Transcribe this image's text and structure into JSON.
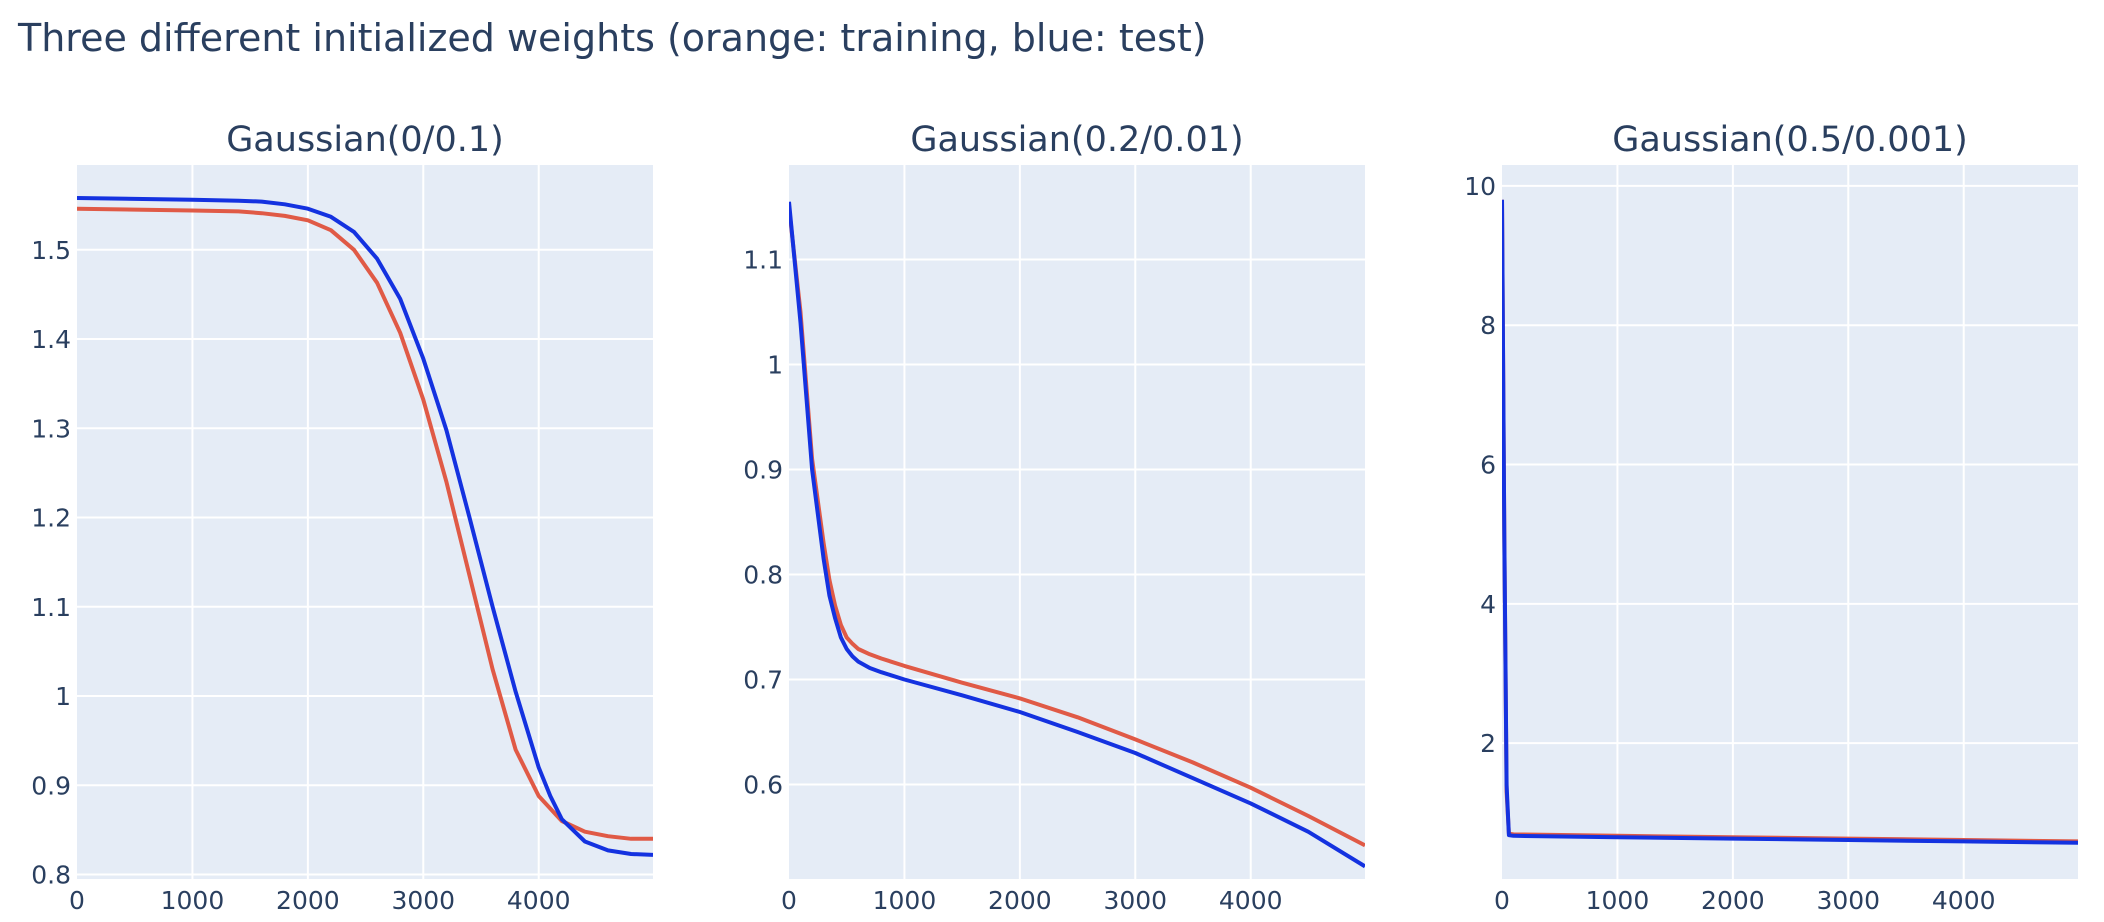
{
  "title": "Three different initialized weights (orange: training, blue: test)",
  "colors": {
    "training": "#e05a46",
    "test": "#1432e0",
    "plot_bg": "#e5ecf6",
    "grid": "#ffffff",
    "text": "#2a3f5f"
  },
  "chart_data": [
    {
      "type": "line",
      "title": "Gaussian(0/0.1)",
      "xlim": [
        0,
        4990
      ],
      "ylim": [
        0.795,
        1.595
      ],
      "xticks": [
        0,
        1000,
        2000,
        3000,
        4000
      ],
      "yticks": [
        0.8,
        0.9,
        1,
        1.1,
        1.2,
        1.3,
        1.4,
        1.5
      ],
      "xtick_labels": [
        "0",
        "1000",
        "2000",
        "3000",
        "4000"
      ],
      "ytick_labels": [
        "0.8",
        "0.9",
        "1",
        "1.1",
        "1.2",
        "1.3",
        "1.4",
        "1.5"
      ],
      "grid": true,
      "series": [
        {
          "color": "training",
          "x": [
            0,
            500,
            1000,
            1400,
            1600,
            1800,
            2000,
            2200,
            2400,
            2600,
            2800,
            3000,
            3200,
            3400,
            3600,
            3800,
            4000,
            4200,
            4400,
            4600,
            4800,
            4990
          ],
          "y": [
            1.546,
            1.545,
            1.544,
            1.543,
            1.541,
            1.538,
            1.533,
            1.522,
            1.5,
            1.463,
            1.407,
            1.332,
            1.24,
            1.135,
            1.03,
            0.94,
            0.888,
            0.86,
            0.848,
            0.843,
            0.84,
            0.84
          ]
        },
        {
          "color": "test",
          "x": [
            0,
            500,
            1000,
            1400,
            1600,
            1800,
            2000,
            2200,
            2400,
            2600,
            2800,
            3000,
            3200,
            3400,
            3600,
            3800,
            4000,
            4100,
            4200,
            4400,
            4600,
            4800,
            4990
          ],
          "y": [
            1.558,
            1.557,
            1.556,
            1.555,
            1.554,
            1.551,
            1.546,
            1.537,
            1.52,
            1.49,
            1.445,
            1.378,
            1.298,
            1.2,
            1.1,
            1.005,
            0.92,
            0.888,
            0.862,
            0.837,
            0.827,
            0.823,
            0.822
          ]
        }
      ]
    },
    {
      "type": "line",
      "title": "Gaussian(0.2/0.01)",
      "xlim": [
        0,
        4990
      ],
      "ylim": [
        0.51,
        1.19
      ],
      "xticks": [
        0,
        1000,
        2000,
        3000,
        4000
      ],
      "yticks": [
        0.6,
        0.7,
        0.8,
        0.9,
        1,
        1.1
      ],
      "xtick_labels": [
        "0",
        "1000",
        "2000",
        "3000",
        "4000"
      ],
      "ytick_labels": [
        "0.6",
        "0.7",
        "0.8",
        "0.9",
        "1",
        "1.1"
      ],
      "grid": true,
      "series": [
        {
          "color": "training",
          "x": [
            0,
            100,
            200,
            300,
            350,
            400,
            450,
            500,
            550,
            600,
            700,
            800,
            1000,
            1500,
            2000,
            2500,
            3000,
            3500,
            4000,
            4500,
            4990
          ],
          "y": [
            1.15,
            1.05,
            0.91,
            0.83,
            0.795,
            0.77,
            0.752,
            0.74,
            0.734,
            0.729,
            0.724,
            0.72,
            0.713,
            0.697,
            0.682,
            0.664,
            0.643,
            0.621,
            0.597,
            0.57,
            0.542
          ]
        },
        {
          "color": "test",
          "x": [
            0,
            100,
            200,
            300,
            350,
            400,
            450,
            500,
            550,
            600,
            700,
            800,
            1000,
            1500,
            2000,
            2500,
            3000,
            3500,
            4000,
            4500,
            4990
          ],
          "y": [
            1.155,
            1.04,
            0.9,
            0.815,
            0.78,
            0.758,
            0.74,
            0.729,
            0.722,
            0.717,
            0.711,
            0.707,
            0.7,
            0.685,
            0.669,
            0.65,
            0.63,
            0.606,
            0.582,
            0.555,
            0.522
          ]
        }
      ]
    },
    {
      "type": "line",
      "title": "Gaussian(0.5/0.001)",
      "xlim": [
        0,
        4990
      ],
      "ylim": [
        0.05,
        10.3
      ],
      "xticks": [
        0,
        1000,
        2000,
        3000,
        4000
      ],
      "yticks": [
        2,
        4,
        6,
        8,
        10
      ],
      "xtick_labels": [
        "0",
        "1000",
        "2000",
        "3000",
        "4000"
      ],
      "ytick_labels": [
        "2",
        "4",
        "6",
        "8",
        "10"
      ],
      "grid": true,
      "series": [
        {
          "color": "training",
          "x": [
            0,
            20,
            40,
            60,
            100,
            1000,
            2000,
            3000,
            4000,
            4990
          ],
          "y": [
            9.8,
            5.0,
            1.3,
            0.7,
            0.69,
            0.67,
            0.65,
            0.63,
            0.61,
            0.59
          ]
        },
        {
          "color": "test",
          "x": [
            0,
            20,
            40,
            60,
            100,
            1000,
            2000,
            3000,
            4000,
            4990
          ],
          "y": [
            9.8,
            5.0,
            1.4,
            0.68,
            0.67,
            0.65,
            0.63,
            0.61,
            0.59,
            0.57
          ]
        }
      ]
    }
  ]
}
